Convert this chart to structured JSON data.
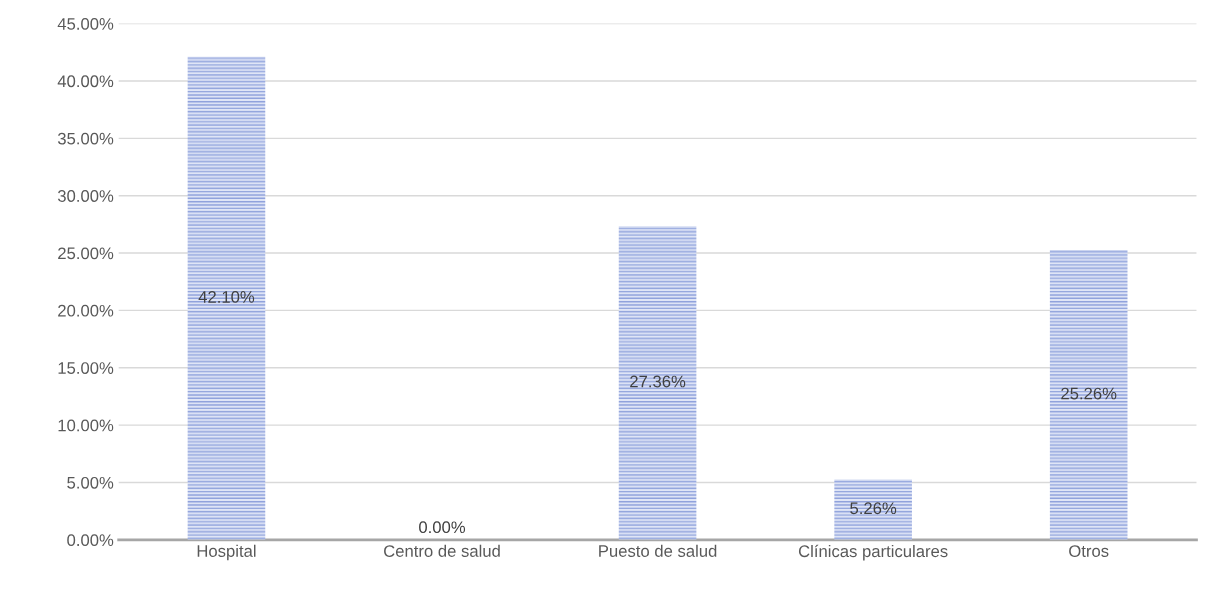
{
  "chart_data": {
    "type": "bar",
    "categories": [
      "Hospital",
      "Centro de salud",
      "Puesto de salud",
      "Clínicas particulares",
      "Otros"
    ],
    "values": [
      42.1,
      0.0,
      27.36,
      5.26,
      25.26
    ],
    "value_labels": [
      "42.10%",
      "0.00%",
      "27.36%",
      "5.26%",
      "25.26%"
    ],
    "color": "#8fa2dc",
    "ylim": [
      0,
      45
    ],
    "yticks": [
      {
        "value": 0,
        "label": "0.00%"
      },
      {
        "value": 5,
        "label": "5.00%"
      },
      {
        "value": 10,
        "label": "10.00%"
      },
      {
        "value": 15,
        "label": "15.00%"
      },
      {
        "value": 20,
        "label": "20.00%"
      },
      {
        "value": 25,
        "label": "25.00%"
      },
      {
        "value": 30,
        "label": "30.00%"
      },
      {
        "value": 35,
        "label": "35.00%"
      },
      {
        "value": 40,
        "label": "40.00%"
      },
      {
        "value": 45,
        "label": "45.00%"
      }
    ],
    "grid": "y",
    "legend": false
  }
}
